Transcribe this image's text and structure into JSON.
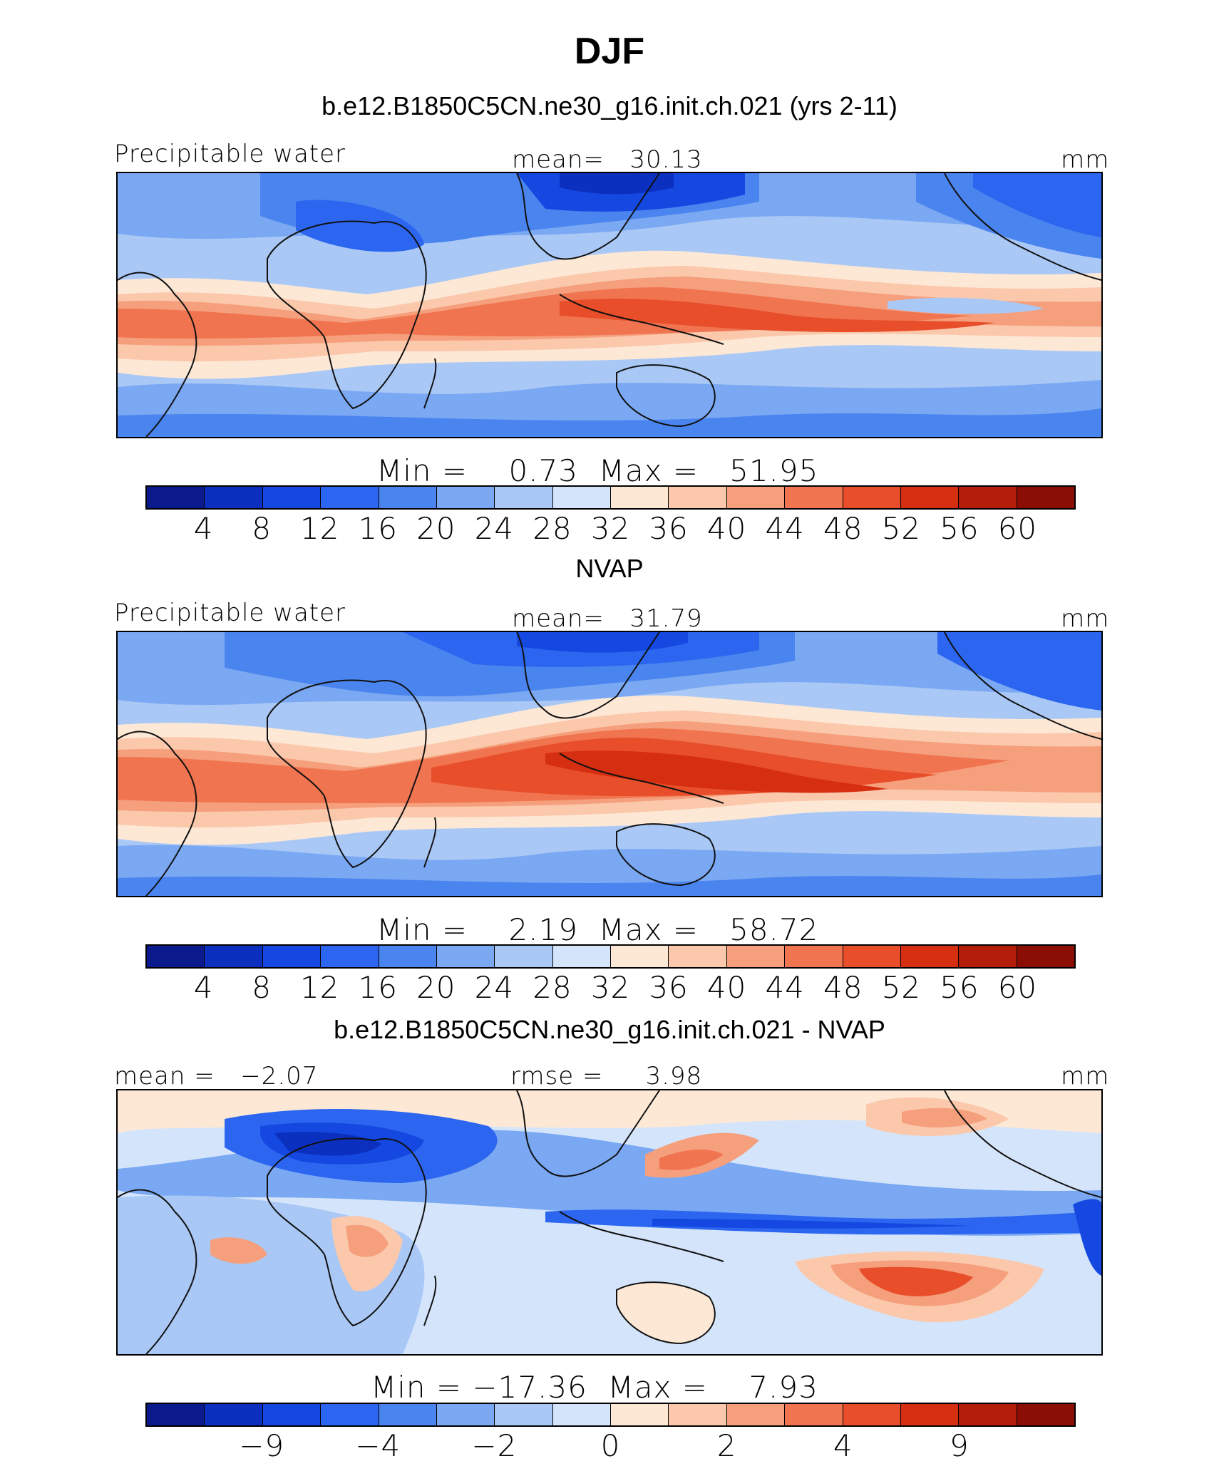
{
  "chart_data": {
    "type": "heatmap",
    "title": "DJF",
    "colors": [
      "#0a1a8c",
      "#0b30c0",
      "#1548e0",
      "#2c66f0",
      "#4a84ee",
      "#7aa8f3",
      "#a9c8f6",
      "#d4e5fb",
      "#fde8d6",
      "#fbc8ac",
      "#f59f7c",
      "#f07450",
      "#e84e2a",
      "#d62e10",
      "#b41d0a",
      "#8a0e03"
    ],
    "panels": [
      {
        "subtitle": "b.e12.B1850C5CN.ne30_g16.init.ch.021 (yrs 2-11)",
        "left_label": "Precipitable water",
        "center_label": "mean=   30.13",
        "right_label": "mm",
        "stats": "Min =    0.73  Max =   51.95",
        "levels": [
          "4",
          "8",
          "12",
          "16",
          "20",
          "24",
          "28",
          "32",
          "36",
          "40",
          "44",
          "48",
          "52",
          "56",
          "60"
        ],
        "min": 0.73,
        "max": 51.95,
        "mean": 30.13
      },
      {
        "subtitle": "NVAP",
        "left_label": "Precipitable water",
        "center_label": "mean=   31.79",
        "right_label": "mm",
        "stats": "Min =    2.19  Max =   58.72",
        "levels": [
          "4",
          "8",
          "12",
          "16",
          "20",
          "24",
          "28",
          "32",
          "36",
          "40",
          "44",
          "48",
          "52",
          "56",
          "60"
        ],
        "min": 2.19,
        "max": 58.72,
        "mean": 31.79
      },
      {
        "subtitle": "b.e12.B1850C5CN.ne30_g16.init.ch.021 - NVAP",
        "left_label": "mean =   −2.07",
        "center_label": "rmse =     3.98",
        "right_label": "mm",
        "stats": "Min = −17.36  Max =    7.93",
        "levels": [
          "−9",
          "−4",
          "−2",
          "0",
          "2",
          "4",
          "9"
        ],
        "level_boundaries": [
          2,
          4,
          6,
          8,
          10,
          12,
          14
        ],
        "min": -17.36,
        "max": 7.93,
        "mean": -2.07,
        "rmse": 3.98
      }
    ]
  }
}
